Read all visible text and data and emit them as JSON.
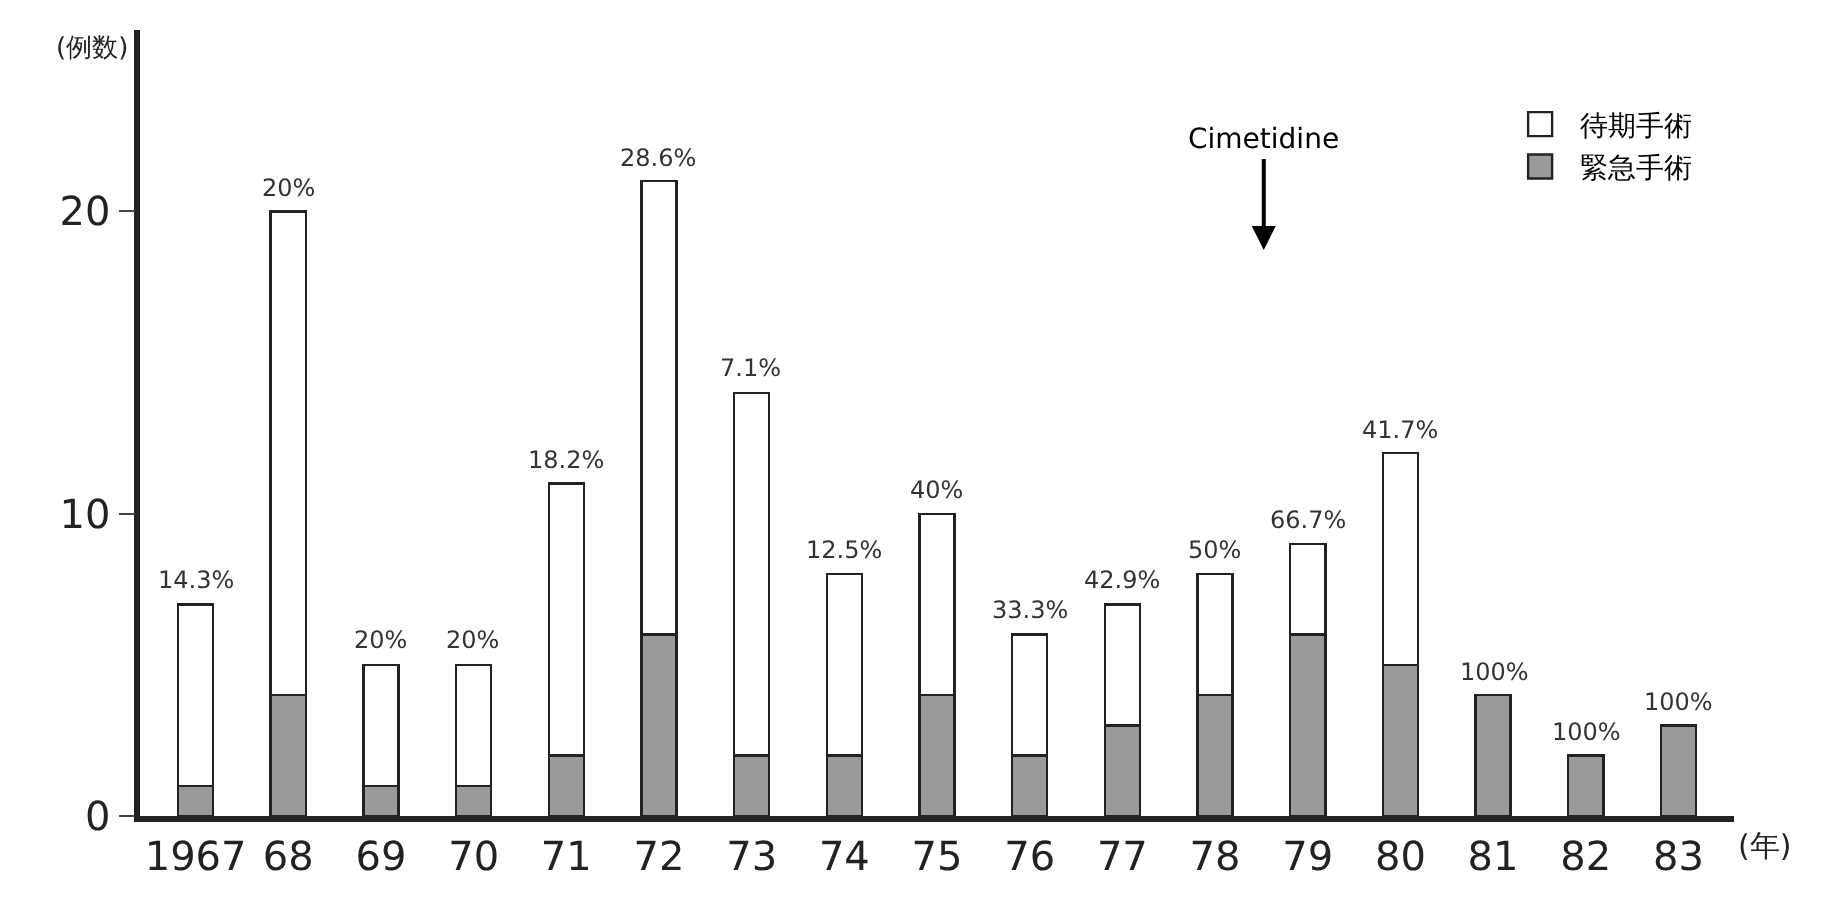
{
  "chart_data": {
    "type": "bar",
    "stacked": true,
    "ylabel": "(例数)",
    "xlabel": "(年)",
    "categories": [
      "1967",
      "68",
      "69",
      "70",
      "71",
      "72",
      "73",
      "74",
      "75",
      "76",
      "77",
      "78",
      "79",
      "80",
      "81",
      "82",
      "83"
    ],
    "series": [
      {
        "name": "緊急手術",
        "color": "#9a9a9a",
        "values": [
          1,
          4,
          1,
          1,
          2,
          6,
          2,
          2,
          4,
          2,
          3,
          4,
          6,
          5,
          4,
          2,
          3
        ]
      },
      {
        "name": "待期手術",
        "color": "#ffffff",
        "values": [
          6,
          16,
          4,
          4,
          9,
          15,
          12,
          6,
          6,
          4,
          4,
          4,
          3,
          7,
          null,
          null,
          null
        ]
      }
    ],
    "ylim": [
      0,
      26
    ],
    "yticks": [
      0,
      10,
      20
    ],
    "legend": "top right",
    "annotations": [
      {
        "text": "14.3%",
        "x": "1967",
        "y": 7
      },
      {
        "text": "20%",
        "x": "68",
        "y": 20
      },
      {
        "text": "20%",
        "x": "69",
        "y": 5
      },
      {
        "text": "20%",
        "x": "70",
        "y": 5
      },
      {
        "text": "18.2%",
        "x": "71",
        "y": 11
      },
      {
        "text": "28.6%",
        "x": "72",
        "y": 21
      },
      {
        "text": "7.1%",
        "x": "73",
        "y": 14
      },
      {
        "text": "12.5%",
        "x": "74",
        "y": 8
      },
      {
        "text": "40%",
        "x": "75",
        "y": 10
      },
      {
        "text": "33.3%",
        "x": "76",
        "y": 6
      },
      {
        "text": "42.9%",
        "x": "77",
        "y": 7
      },
      {
        "text": "50%",
        "x": "78",
        "y": 8
      },
      {
        "text": "66.7%",
        "x": "79",
        "y": 9
      },
      {
        "text": "41.7%",
        "x": "80",
        "y": 12
      },
      {
        "text": "100%",
        "x": "81",
        "y": 4
      },
      {
        "text": "100%",
        "x": "82",
        "y": 2
      },
      {
        "text": "100%",
        "x": "83",
        "y": 3
      },
      "Cimetidine"
    ]
  }
}
